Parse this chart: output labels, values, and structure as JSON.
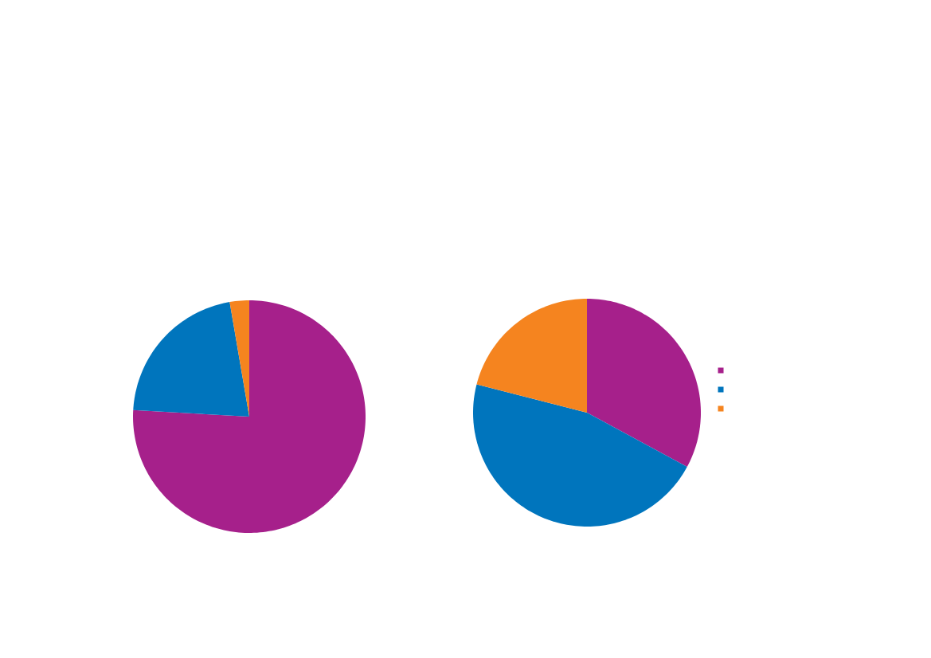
{
  "chart_data": [
    {
      "type": "pie",
      "categories": [
        null,
        null,
        null
      ],
      "values": [
        75.9,
        21.4,
        2.7
      ],
      "colors": [
        "#a6208b",
        "#0075bd",
        "#f5841f"
      ]
    },
    {
      "type": "pie",
      "categories": [
        null,
        null,
        null
      ],
      "values": [
        32.9,
        46.1,
        21.0
      ],
      "colors": [
        "#a6208b",
        "#0075bd",
        "#f5841f"
      ]
    }
  ]
}
